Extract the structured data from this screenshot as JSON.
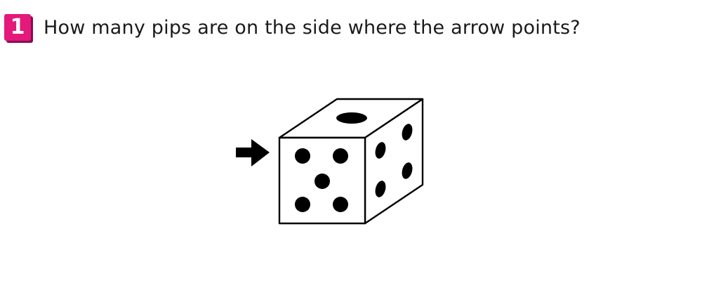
{
  "question": {
    "number": "1",
    "text": "How many pips are on the side where the arrow points?",
    "badge_color": "#e4197a"
  },
  "figure": {
    "arrow_icon": "arrow-right-icon",
    "die": {
      "front_face_pips": 5,
      "top_face_pips": 1,
      "side_face_pips": 4
    },
    "colors": {
      "outline": "#000000",
      "face": "#ffffff",
      "pip": "#000000"
    }
  }
}
